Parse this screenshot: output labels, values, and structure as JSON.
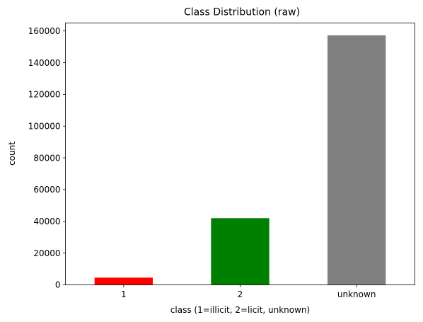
{
  "chart_data": {
    "type": "bar",
    "title": "Class Distribution (raw)",
    "xlabel": "class (1=illicit, 2=licit, unknown)",
    "ylabel": "count",
    "categories": [
      "1",
      "2",
      "unknown"
    ],
    "values": [
      4545,
      42019,
      157205
    ],
    "colors": [
      "#ff0000",
      "#008000",
      "#808080"
    ],
    "ylim": [
      0,
      165000
    ],
    "yticks": [
      0,
      20000,
      40000,
      60000,
      80000,
      100000,
      120000,
      140000,
      160000
    ],
    "grid": false,
    "legend": "none"
  }
}
